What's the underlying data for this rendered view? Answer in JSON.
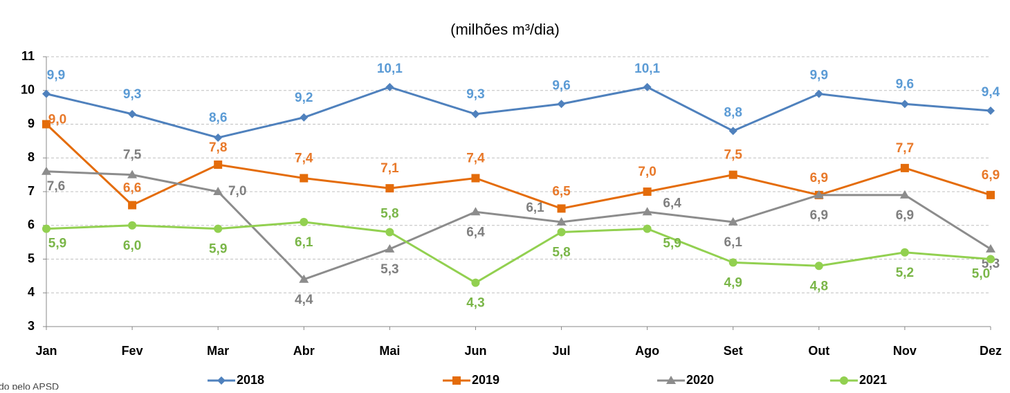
{
  "chart_data": {
    "type": "line",
    "subtitle": "(milhões m³/dia)",
    "note": "do pelo APSD",
    "categories": [
      "Jan",
      "Fev",
      "Mar",
      "Abr",
      "Mai",
      "Jun",
      "Jul",
      "Ago",
      "Set",
      "Out",
      "Nov",
      "Dez"
    ],
    "ylim": [
      3,
      11
    ],
    "yticks": [
      3,
      4,
      5,
      6,
      7,
      8,
      9,
      10,
      11
    ],
    "grid": true,
    "series": [
      {
        "name": "2018",
        "color": "#4f81bd",
        "label_color": "#5b9bd5",
        "marker": "diamond",
        "values": [
          9.9,
          9.3,
          8.6,
          9.2,
          10.1,
          9.3,
          9.6,
          10.1,
          8.8,
          9.9,
          9.6,
          9.4
        ],
        "value_labels": [
          "9,9",
          "9,3",
          "8,6",
          "9,2",
          "10,1",
          "9,3",
          "9,6",
          "10,1",
          "8,8",
          "9,9",
          "9,6",
          "9,4"
        ]
      },
      {
        "name": "2019",
        "color": "#e46c0a",
        "label_color": "#e8792a",
        "marker": "square",
        "values": [
          9.0,
          6.6,
          7.8,
          7.4,
          7.1,
          7.4,
          6.5,
          7.0,
          7.5,
          6.9,
          7.7,
          6.9
        ],
        "value_labels": [
          "9,0",
          "6,6",
          "7,8",
          "7,4",
          "7,1",
          "7,4",
          "6,5",
          "7,0",
          "7,5",
          "6,9",
          "7,7",
          "6,9"
        ]
      },
      {
        "name": "2020",
        "color": "#8c8c8c",
        "label_color": "#7f7f7f",
        "marker": "triangle",
        "values": [
          7.6,
          7.5,
          7.0,
          4.4,
          5.3,
          6.4,
          6.1,
          6.4,
          6.1,
          6.9,
          6.9,
          5.3
        ],
        "value_labels": [
          "7,6",
          "7,5",
          "7,0",
          "4,4",
          "5,3",
          "6,4",
          "6,1",
          "6,4",
          "6,1",
          "6,9",
          "6,9",
          "5,3"
        ]
      },
      {
        "name": "2021",
        "color": "#92d050",
        "label_color": "#7ab648",
        "marker": "circle",
        "values": [
          5.9,
          6.0,
          5.9,
          6.1,
          5.8,
          4.3,
          5.8,
          5.9,
          4.9,
          4.8,
          5.2,
          5.0
        ],
        "value_labels": [
          "5,9",
          "6,0",
          "5,9",
          "6,1",
          "5,8",
          "4,3",
          "5,8",
          "5,9",
          "4,9",
          "4,8",
          "5,2",
          "5,0"
        ]
      }
    ]
  }
}
